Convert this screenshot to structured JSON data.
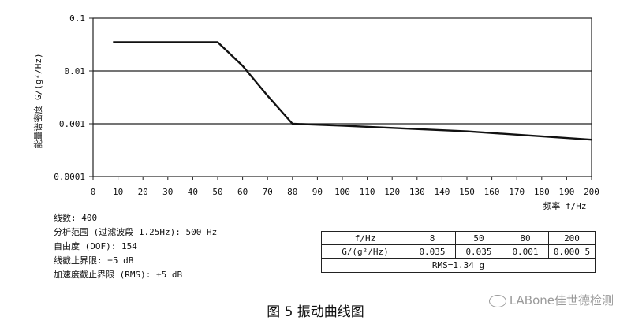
{
  "chart_data": {
    "type": "line",
    "ylabel": "能量谱密度 G/(g²/Hz)",
    "xlabel": "频率 f/Hz",
    "xlim": [
      0,
      200
    ],
    "ylim": [
      0.0001,
      0.1
    ],
    "yscale": "log",
    "x_ticks": [
      "0",
      "10",
      "20",
      "30",
      "40",
      "50",
      "60",
      "70",
      "80",
      "90",
      "100",
      "110",
      "120",
      "130",
      "140",
      "150",
      "160",
      "170",
      "180",
      "190",
      "200"
    ],
    "y_ticks": [
      {
        "value": 0.1,
        "label": "0.1"
      },
      {
        "value": 0.01,
        "label": "0.01"
      },
      {
        "value": 0.001,
        "label": "0.001"
      },
      {
        "value": 0.0001,
        "label": "0.0001"
      }
    ],
    "series": [
      {
        "x": [
          8,
          50,
          60,
          70,
          80,
          100,
          150,
          200
        ],
        "y": [
          0.035,
          0.035,
          0.0125,
          0.0034,
          0.001,
          0.00092,
          0.00072,
          0.0005
        ]
      }
    ],
    "reference_lines": [
      0.01,
      0.001
    ],
    "grid": false
  },
  "params": {
    "line1": "线数: 400",
    "line2": "分析范围 (过滤波段 1.25Hz): 500 Hz",
    "line3": "自由度 (DOF): 154",
    "line4": "线截止界限: ±5 dB",
    "line5": "加速度截止界限 (RMS): ±5 dB"
  },
  "table": {
    "row1_header": "f/Hz",
    "row1": [
      "8",
      "50",
      "80",
      "200"
    ],
    "row2_header": "G/(g²/Hz)",
    "row2": [
      "0.035",
      "0.035",
      "0.001",
      "0.000 5"
    ],
    "rms": "RMS=1.34 g"
  },
  "caption": "图 5 振动曲线图",
  "watermark": "LABone佳世德检测"
}
